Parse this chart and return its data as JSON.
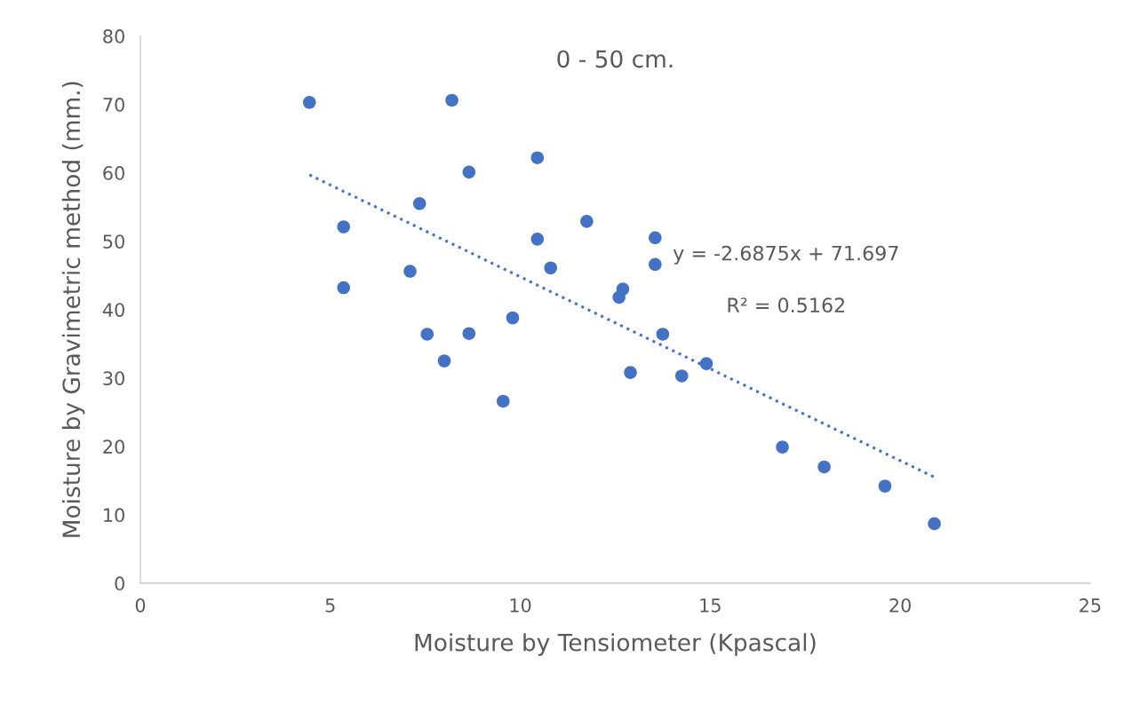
{
  "chart_data": {
    "type": "scatter",
    "title": "0 - 50 cm.",
    "xlabel": "Moisture by Tensiometer (Kpascal)",
    "ylabel": "Moisture by Gravimetric method (mm.)",
    "series": [
      {
        "color": "#4472c4",
        "marker": "circle",
        "x": [
          4.45,
          8.2,
          10.45,
          8.65,
          7.35,
          5.35,
          11.75,
          10.45,
          13.55,
          10.8,
          13.55,
          7.1,
          5.35,
          12.7,
          12.6,
          9.8,
          7.55,
          8.65,
          13.75,
          8.0,
          14.9,
          12.9,
          14.25,
          9.55,
          16.9,
          18.0,
          19.6,
          20.9
        ],
        "values": [
          70.3,
          70.6,
          62.2,
          60.1,
          55.5,
          52.1,
          52.9,
          50.3,
          50.5,
          46.1,
          46.6,
          45.6,
          43.2,
          43.0,
          41.8,
          38.8,
          36.4,
          36.5,
          36.4,
          32.5,
          32.1,
          30.8,
          30.3,
          26.6,
          19.9,
          17.0,
          14.2,
          8.7
        ]
      },
      {
        "type": "line",
        "color": "#4472c4",
        "line_style": "dotted",
        "marker": "none",
        "x": [
          4.45,
          20.9
        ],
        "values": [
          59.7,
          15.5
        ]
      }
    ],
    "annotations": [
      "y = -2.6875x + 71.697",
      "R² = 0.5162"
    ],
    "xlim": [
      0,
      25
    ],
    "xticks": [
      0,
      5,
      10,
      15,
      20,
      25
    ],
    "ylim": [
      0,
      80
    ],
    "yticks": [
      0,
      10,
      20,
      30,
      40,
      50,
      60,
      70,
      80
    ],
    "grid": false,
    "legend": false
  }
}
